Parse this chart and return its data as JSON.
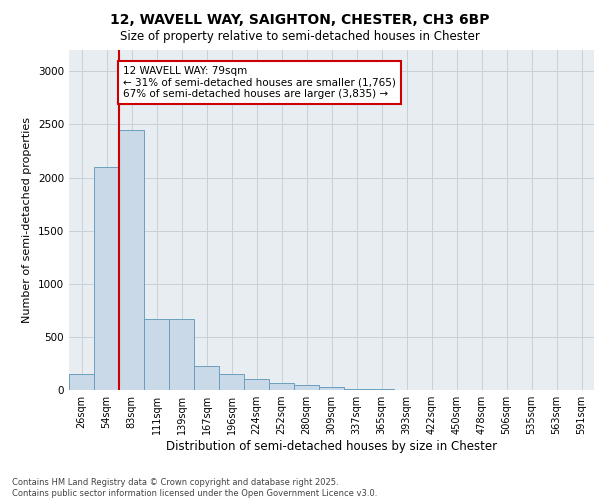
{
  "title1": "12, WAVELL WAY, SAIGHTON, CHESTER, CH3 6BP",
  "title2": "Size of property relative to semi-detached houses in Chester",
  "xlabel": "Distribution of semi-detached houses by size in Chester",
  "ylabel": "Number of semi-detached properties",
  "bar_labels": [
    "26sqm",
    "54sqm",
    "83sqm",
    "111sqm",
    "139sqm",
    "167sqm",
    "196sqm",
    "224sqm",
    "252sqm",
    "280sqm",
    "309sqm",
    "337sqm",
    "365sqm",
    "393sqm",
    "422sqm",
    "450sqm",
    "478sqm",
    "506sqm",
    "535sqm",
    "563sqm",
    "591sqm"
  ],
  "bar_values": [
    150,
    2100,
    2450,
    670,
    670,
    230,
    150,
    100,
    70,
    50,
    30,
    10,
    5,
    2,
    1,
    0,
    0,
    0,
    0,
    0,
    0
  ],
  "bar_color": "#c9d9e8",
  "bar_edgecolor": "#6a9ec0",
  "grid_color": "#c8d0d8",
  "bg_color": "#e8edf2",
  "vline_color": "#cc0000",
  "annotation_text": "12 WAVELL WAY: 79sqm\n← 31% of semi-detached houses are smaller (1,765)\n67% of semi-detached houses are larger (3,835) →",
  "annotation_box_color": "#ffffff",
  "annotation_box_edgecolor": "#cc0000",
  "footer_text": "Contains HM Land Registry data © Crown copyright and database right 2025.\nContains public sector information licensed under the Open Government Licence v3.0.",
  "ylim": [
    0,
    3200
  ],
  "yticks": [
    0,
    500,
    1000,
    1500,
    2000,
    2500,
    3000
  ]
}
